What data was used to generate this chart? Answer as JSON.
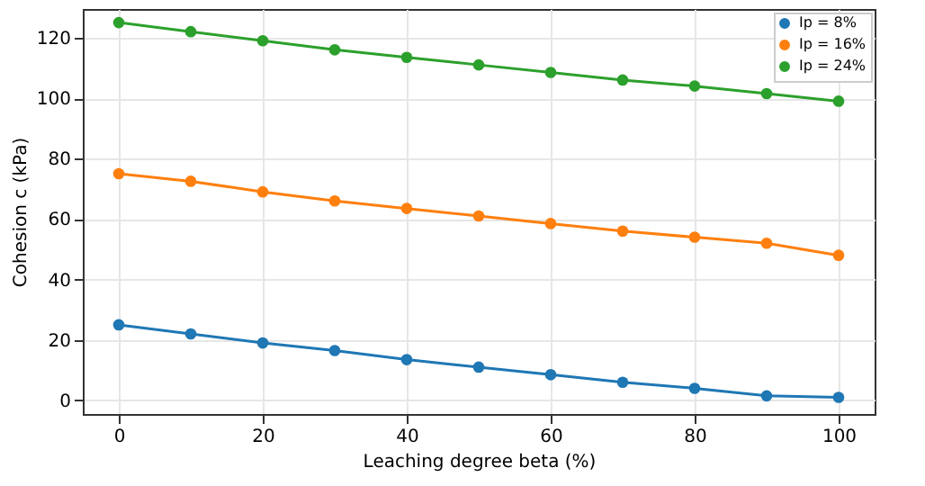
{
  "chart_data": {
    "type": "line",
    "xlabel": "Leaching degree beta (%)",
    "ylabel": "Cohesion c (kPa)",
    "x": [
      0,
      10,
      20,
      30,
      40,
      50,
      60,
      70,
      80,
      90,
      100
    ],
    "series": [
      {
        "name": "Ip = 8%",
        "color": "#1f77b4",
        "values": [
          25,
          22,
          19,
          16.5,
          13.5,
          11,
          8.5,
          6,
          4,
          1.5,
          1
        ]
      },
      {
        "name": "Ip = 16%",
        "color": "#ff7f0e",
        "values": [
          75,
          72.5,
          69,
          66,
          63.5,
          61,
          58.5,
          56,
          54,
          52,
          48
        ]
      },
      {
        "name": "Ip = 24%",
        "color": "#2ca02c",
        "values": [
          125,
          122,
          119,
          116,
          113.5,
          111,
          108.5,
          106,
          104,
          101.5,
          99
        ]
      }
    ],
    "xlim": [
      -5,
      105
    ],
    "ylim": [
      -4.5,
      129.5
    ],
    "xticks": [
      0,
      20,
      40,
      60,
      80,
      100
    ],
    "yticks": [
      0,
      20,
      40,
      60,
      80,
      100,
      120
    ],
    "grid": true,
    "legend": "top right",
    "marker": "circle",
    "line_style": "solid"
  }
}
